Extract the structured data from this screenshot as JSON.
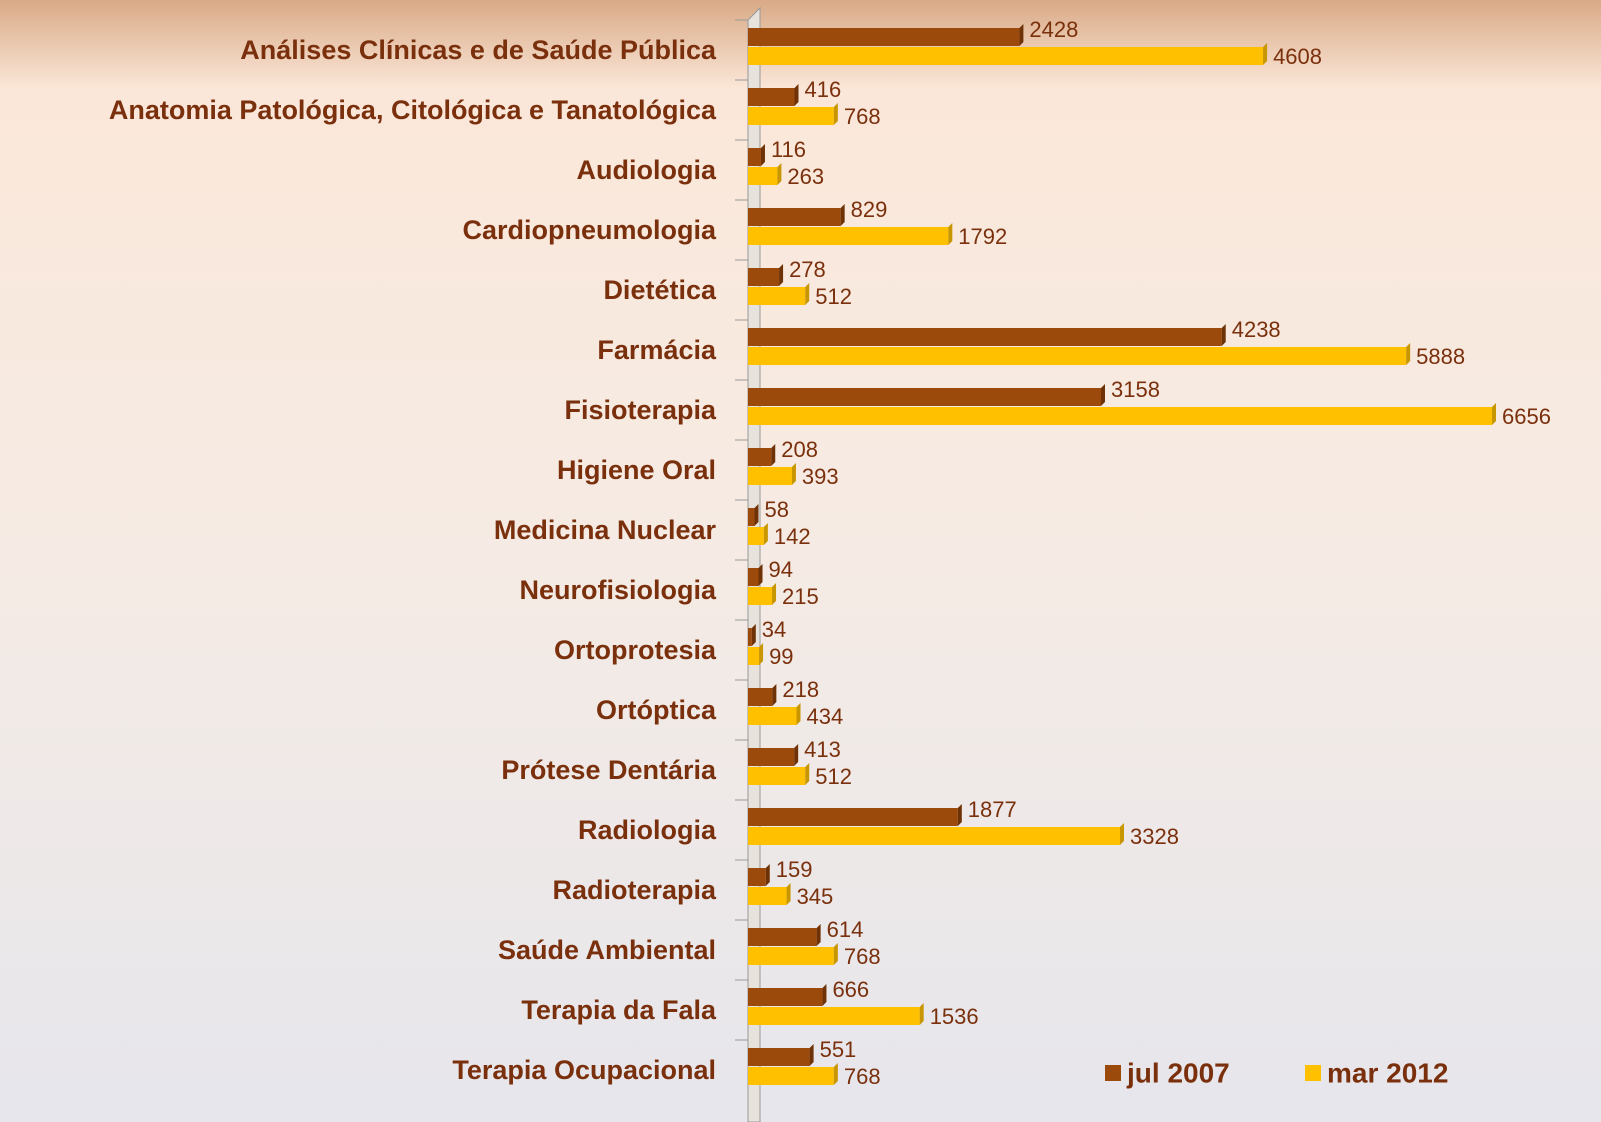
{
  "chart_data": {
    "type": "bar",
    "orientation": "horizontal",
    "categories": [
      "Análises Clínicas e de Saúde Pública",
      "Anatomia Patológica, Citológica e Tanatológica",
      "Audiologia",
      "Cardiopneumologia",
      "Dietética",
      "Farmácia",
      "Fisioterapia",
      "Higiene Oral",
      "Medicina Nuclear",
      "Neurofisiologia",
      "Ortoprotesia",
      "Ortóptica",
      "Prótese Dentária",
      "Radiologia",
      "Radioterapia",
      "Saúde Ambiental",
      "Terapia da Fala",
      "Terapia Ocupacional"
    ],
    "series": [
      {
        "name": "jul 2007",
        "color": "#9c4a0b",
        "values": [
          2428,
          416,
          116,
          829,
          278,
          4238,
          3158,
          208,
          58,
          94,
          34,
          218,
          413,
          1877,
          159,
          614,
          666,
          551
        ]
      },
      {
        "name": "mar 2012",
        "color": "#ffc000",
        "values": [
          4608,
          768,
          263,
          1792,
          512,
          5888,
          6656,
          393,
          142,
          215,
          99,
          434,
          512,
          3328,
          345,
          768,
          1536,
          768
        ]
      }
    ],
    "legend": "lower right"
  }
}
